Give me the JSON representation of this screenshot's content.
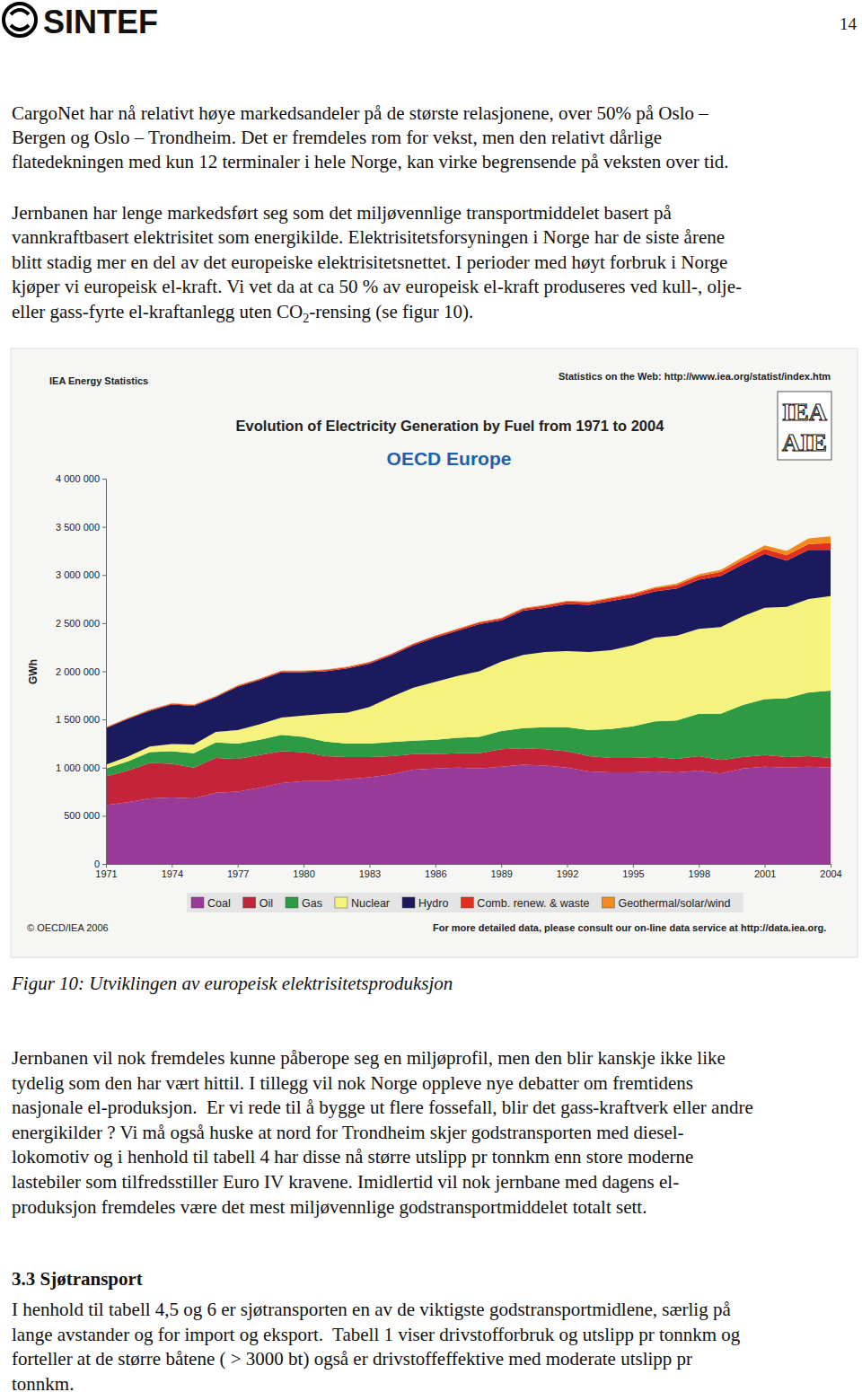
{
  "header": {
    "logo": "SINTEF",
    "page_number": "14"
  },
  "body": {
    "paragraphs": [
      [
        "CargoNet har nå relativt høye markedsandeler på de største relasjonene, over 50% på Oslo –",
        "Bergen og Oslo – Trondheim. Det er fremdeles rom for vekst, men den relativt dårlige",
        "flatedekningen med kun 12 terminaler i hele Norge, kan virke begrensende på veksten over tid."
      ],
      [
        "Jernbanen har lenge markedsført seg som det miljøvennlige transportmiddelet basert på",
        "vannkraftbasert elektrisitet som energikilde. Elektrisitetsforsyningen i Norge har de siste årene",
        "blitt stadig mer en del av det europeiske elektrisitetsnettet. I perioder med høyt forbruk i Norge",
        "kjøper vi europeisk el-kraft. Vi vet da at ca 50 % av europeisk el-kraft produseres ved kull-, olje-",
        [
          {
            "text": "eller gass-fyrte el-kraftanlegg uten CO"
          },
          {
            "text": "2",
            "sub": true
          },
          {
            "text": "-rensing (se figur 10)."
          }
        ]
      ]
    ],
    "caption": "Figur 10: Utviklingen av europeisk elektrisitetsproduksjon",
    "paragraphs_after": [
      [
        "Jernbanen vil nok fremdeles kunne påberope seg en miljøprofil, men den blir kanskje ikke like",
        "tydelig som den har vært hittil. I tillegg vil nok Norge oppleve nye debatter om fremtidens",
        "nasjonale el-produksjon.  Er vi rede til å bygge ut flere fossefall, blir det gass-kraftverk eller andre",
        "energikilder ? Vi må også huske at nord for Trondheim skjer godstransporten med diesel-",
        "lokomotiv og i henhold til tabell 4 har disse nå større utslipp pr tonnkm enn store moderne",
        "lastebiler som tilfredsstiller Euro IV kravene. Imidlertid vil nok jernbane med dagens el-",
        "produksjon fremdeles være det mest miljøvennlige godstransportmiddelet totalt sett."
      ]
    ],
    "heading": "3.3 Sjøtransport",
    "section_paragraphs": [
      [
        "I henhold til tabell 4,5 og 6 er sjøtransporten en av de viktigste godstransportmidlene, særlig på",
        "lange avstander og for import og eksport.  Tabell 1 viser drivstofforbruk og utslipp pr tonnkm og",
        "forteller at de større båtene ( > 3000 bt) også er drivstoffeffektive med moderate utslipp pr",
        "tonnkm."
      ]
    ]
  },
  "chart_data": {
    "type": "area",
    "stacked": true,
    "title": "Evolution of Electricity Generation by Fuel from 1971 to 2004",
    "subtitle": "OECD Europe",
    "y_label": "GWh",
    "annotations": [
      "IEA Energy Statistics",
      "Statistics on the Web: http://www.iea.org/statist/index.htm",
      "© OECD/IEA 2006",
      "For more detailed data, please consult our on-line data service at http://data.iea.org.",
      "IEA",
      "AIE"
    ],
    "x": [
      1971,
      1972,
      1973,
      1974,
      1975,
      1976,
      1977,
      1978,
      1979,
      1980,
      1981,
      1982,
      1983,
      1984,
      1985,
      1986,
      1987,
      1988,
      1989,
      1990,
      1991,
      1992,
      1993,
      1994,
      1995,
      1996,
      1997,
      1998,
      1999,
      2000,
      2001,
      2002,
      2003,
      2004
    ],
    "xlim": [
      1971,
      2004
    ],
    "xticks": [
      1971,
      1974,
      1977,
      1980,
      1983,
      1986,
      1989,
      1992,
      1995,
      1998,
      2001,
      2004
    ],
    "ylim": [
      0,
      4000000
    ],
    "yticks": [
      0,
      {
        "value": 500000,
        "label": "500 000"
      },
      {
        "value": 1000000,
        "label": "1 000 000"
      },
      {
        "value": 1500000,
        "label": "1 500 000"
      },
      {
        "value": 2000000,
        "label": "2 000 000"
      },
      {
        "value": 2500000,
        "label": "2 500 000"
      },
      {
        "value": 3000000,
        "label": "3 000 000"
      },
      {
        "value": 3500000,
        "label": "3 500 000"
      },
      {
        "value": 4000000,
        "label": "4 000 000"
      }
    ],
    "grid": false,
    "legend": "bottom",
    "series": [
      {
        "name": "Coal",
        "color": "#9a3a98",
        "values": [
          610000,
          640000,
          680000,
          690000,
          680000,
          740000,
          750000,
          790000,
          840000,
          860000,
          860000,
          880000,
          900000,
          930000,
          980000,
          990000,
          1000000,
          990000,
          1010000,
          1030000,
          1020000,
          1000000,
          960000,
          950000,
          950000,
          960000,
          950000,
          970000,
          940000,
          990000,
          1010000,
          1000000,
          1010000,
          1000000
        ]
      },
      {
        "name": "Oil",
        "color": "#c4243a",
        "values": [
          300000,
          330000,
          370000,
          350000,
          320000,
          360000,
          340000,
          340000,
          330000,
          300000,
          260000,
          230000,
          210000,
          190000,
          160000,
          150000,
          150000,
          160000,
          180000,
          170000,
          170000,
          170000,
          160000,
          150000,
          150000,
          150000,
          140000,
          150000,
          140000,
          120000,
          120000,
          110000,
          110000,
          100000
        ]
      },
      {
        "name": "Gas",
        "color": "#2e9a44",
        "values": [
          80000,
          95000,
          110000,
          130000,
          150000,
          160000,
          160000,
          160000,
          170000,
          160000,
          150000,
          140000,
          140000,
          145000,
          140000,
          150000,
          160000,
          170000,
          190000,
          210000,
          230000,
          250000,
          270000,
          300000,
          330000,
          370000,
          400000,
          440000,
          480000,
          540000,
          580000,
          610000,
          660000,
          700000
        ]
      },
      {
        "name": "Nuclear",
        "color": "#f6f27e",
        "values": [
          40000,
          50000,
          60000,
          75000,
          90000,
          110000,
          140000,
          160000,
          180000,
          220000,
          290000,
          320000,
          380000,
          470000,
          550000,
          600000,
          640000,
          680000,
          720000,
          760000,
          780000,
          790000,
          810000,
          820000,
          840000,
          870000,
          880000,
          880000,
          900000,
          920000,
          950000,
          950000,
          970000,
          980000
        ]
      },
      {
        "name": "Hydro",
        "color": "#1b1a5c",
        "values": [
          380000,
          390000,
          370000,
          410000,
          400000,
          360000,
          450000,
          460000,
          470000,
          450000,
          440000,
          460000,
          450000,
          430000,
          440000,
          460000,
          470000,
          490000,
          430000,
          460000,
          460000,
          490000,
          490000,
          510000,
          500000,
          480000,
          490000,
          510000,
          530000,
          540000,
          560000,
          480000,
          510000,
          480000
        ]
      },
      {
        "name": "Comb. renew. & waste",
        "color": "#e2301f",
        "values": [
          8000,
          8000,
          9000,
          9000,
          10000,
          10000,
          11000,
          11000,
          12000,
          12000,
          13000,
          13000,
          14000,
          14000,
          15000,
          16000,
          17000,
          17000,
          18000,
          20000,
          22000,
          24000,
          26000,
          28000,
          30000,
          33000,
          36000,
          39000,
          42000,
          45000,
          50000,
          55000,
          62000,
          70000
        ]
      },
      {
        "name": "Geothermal/solar/wind",
        "color": "#f28a1e",
        "values": [
          4000,
          4000,
          4000,
          4000,
          4000,
          4000,
          4000,
          4000,
          5000,
          5000,
          5000,
          5000,
          5000,
          5000,
          5000,
          5000,
          6000,
          6000,
          6000,
          7000,
          7000,
          8000,
          8000,
          9000,
          10000,
          12000,
          15000,
          18000,
          22000,
          30000,
          38000,
          45000,
          58000,
          70000
        ]
      }
    ]
  }
}
